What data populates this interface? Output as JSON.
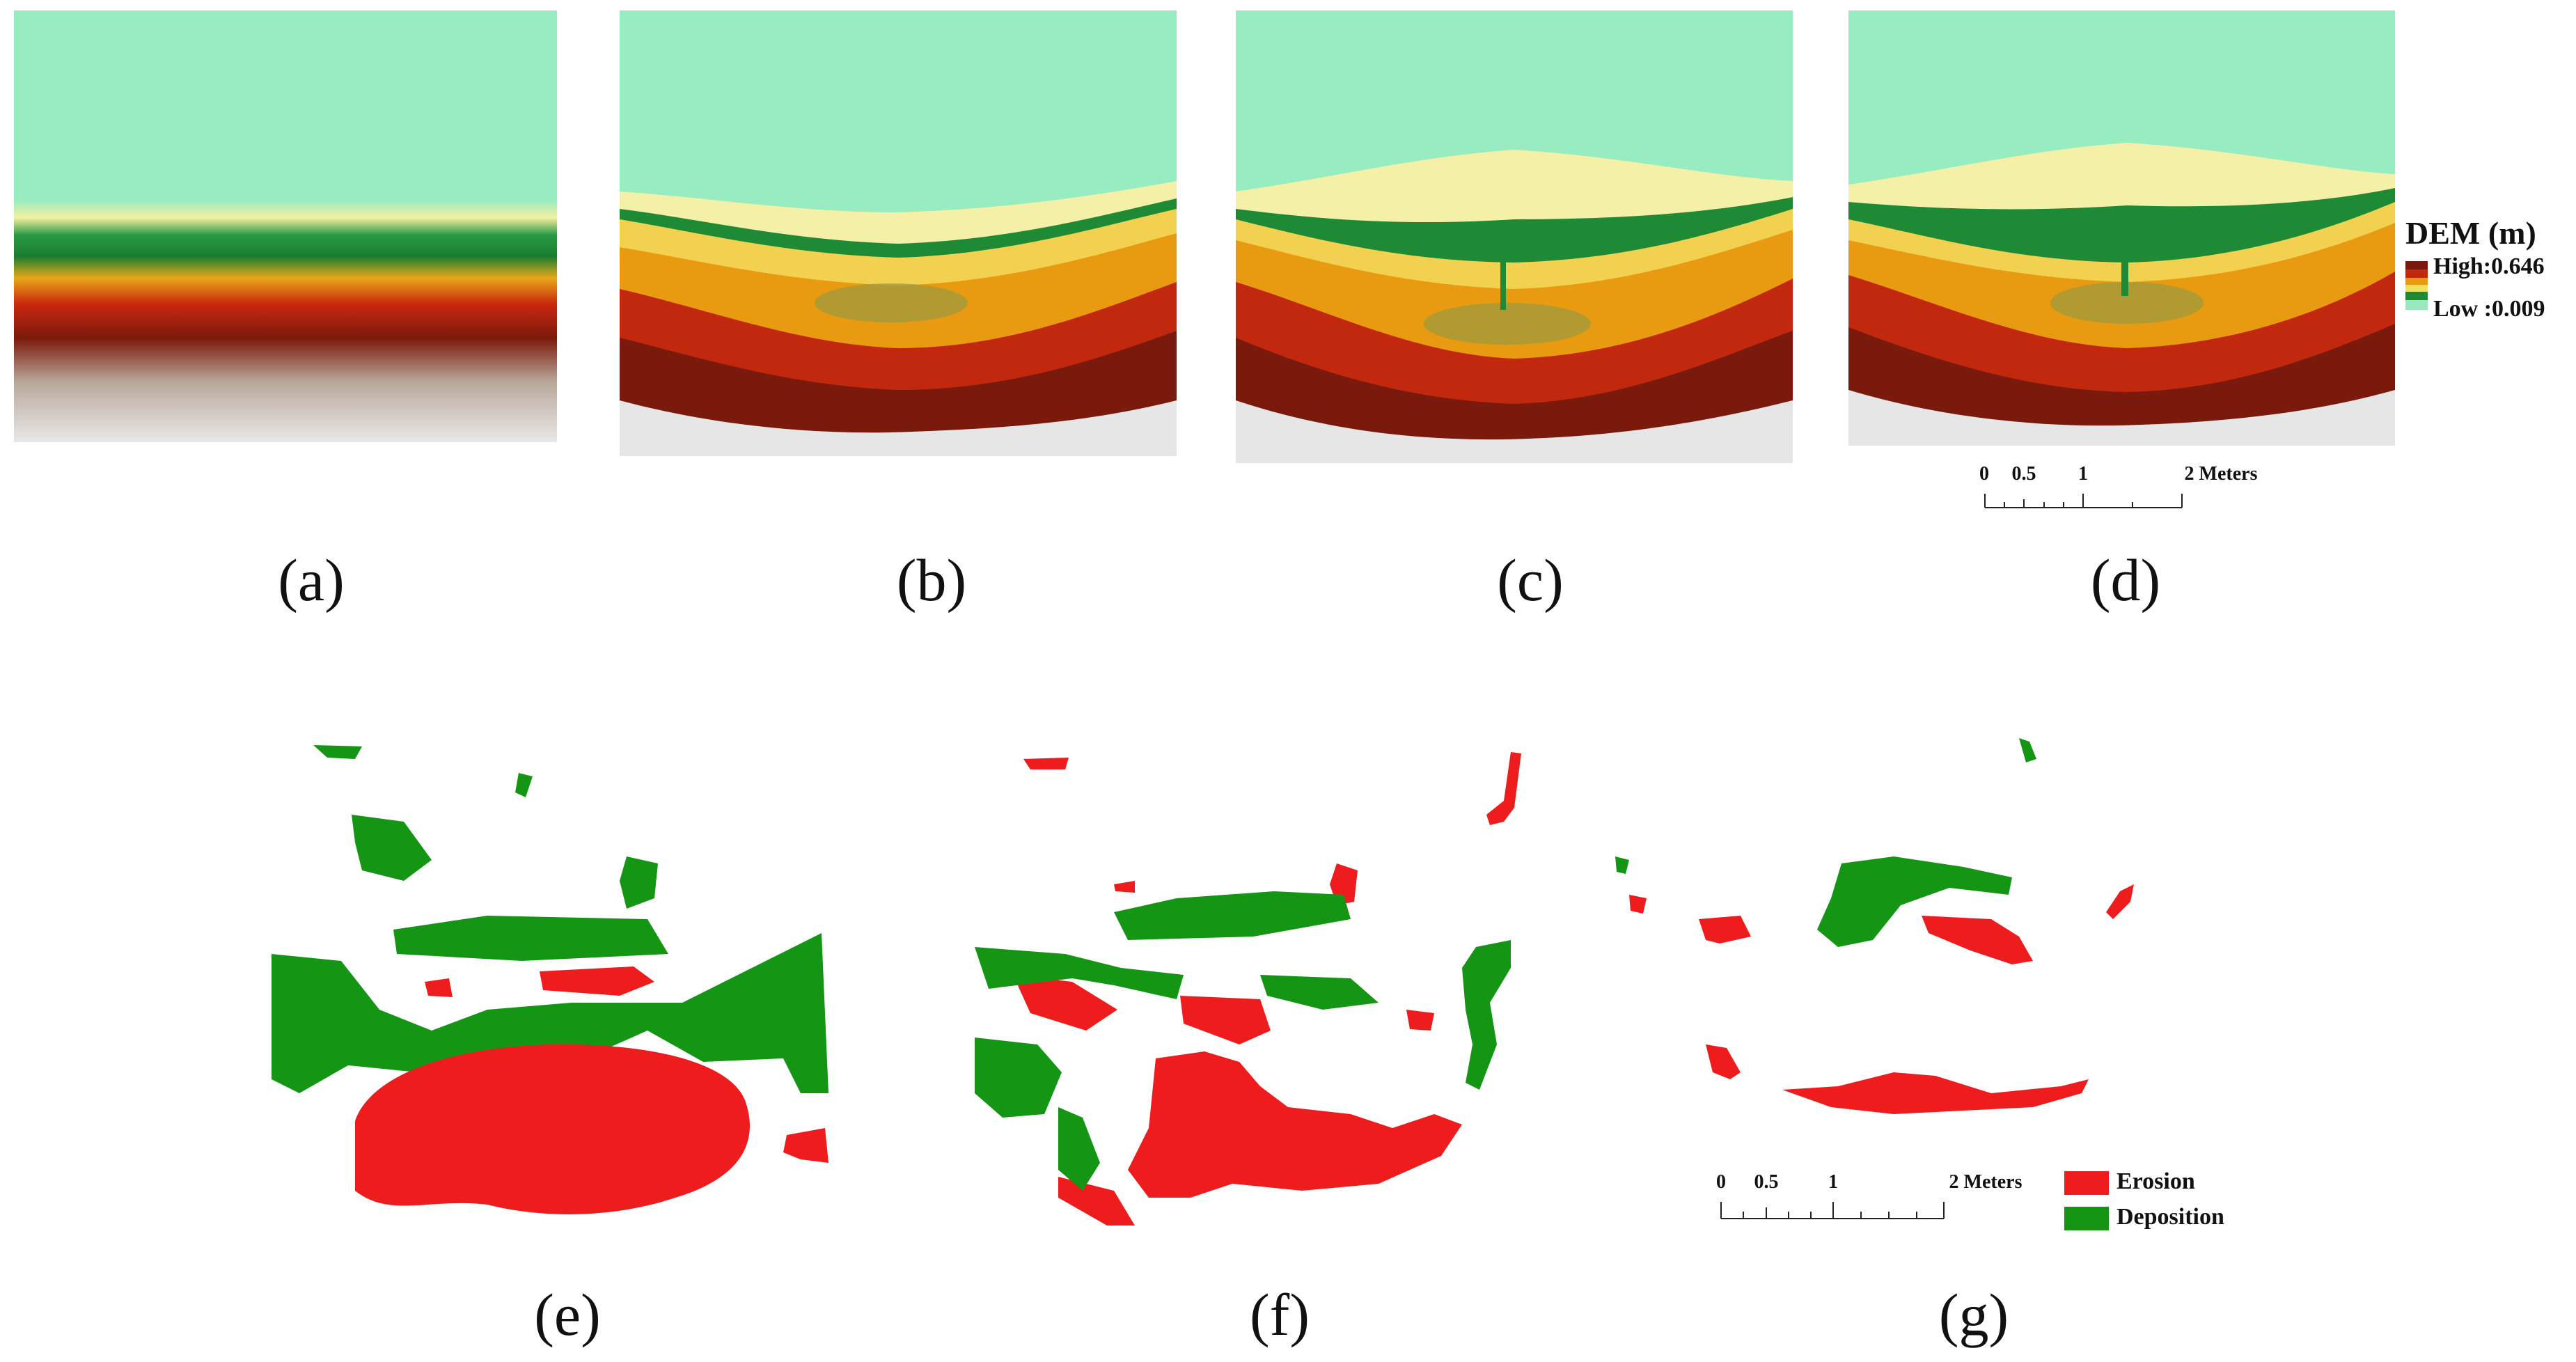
{
  "panels": {
    "dem": [
      {
        "caption": "(a)"
      },
      {
        "caption": "(b)"
      },
      {
        "caption": "(c)"
      },
      {
        "caption": "(d)"
      }
    ],
    "change": [
      {
        "caption": "(e)"
      },
      {
        "caption": "(f)"
      },
      {
        "caption": "(g)"
      }
    ]
  },
  "dem_legend": {
    "title": "DEM (m)",
    "high_label": "High:0.646",
    "low_label": "Low :0.009",
    "ramp_colors": [
      "#7a1a0c",
      "#c2280e",
      "#e89a10",
      "#f2e060",
      "#1f8a35",
      "#9be8c0"
    ]
  },
  "scale_bar_top": {
    "labels": [
      "0",
      "0.5",
      "1",
      "2 Meters"
    ]
  },
  "scale_bar_bottom": {
    "labels": [
      "0",
      "0.5",
      "1",
      "2 Meters"
    ]
  },
  "change_legend": {
    "items": [
      {
        "label": "Erosion",
        "color": "#ee1c1c"
      },
      {
        "label": "Deposition",
        "color": "#149614"
      }
    ]
  }
}
